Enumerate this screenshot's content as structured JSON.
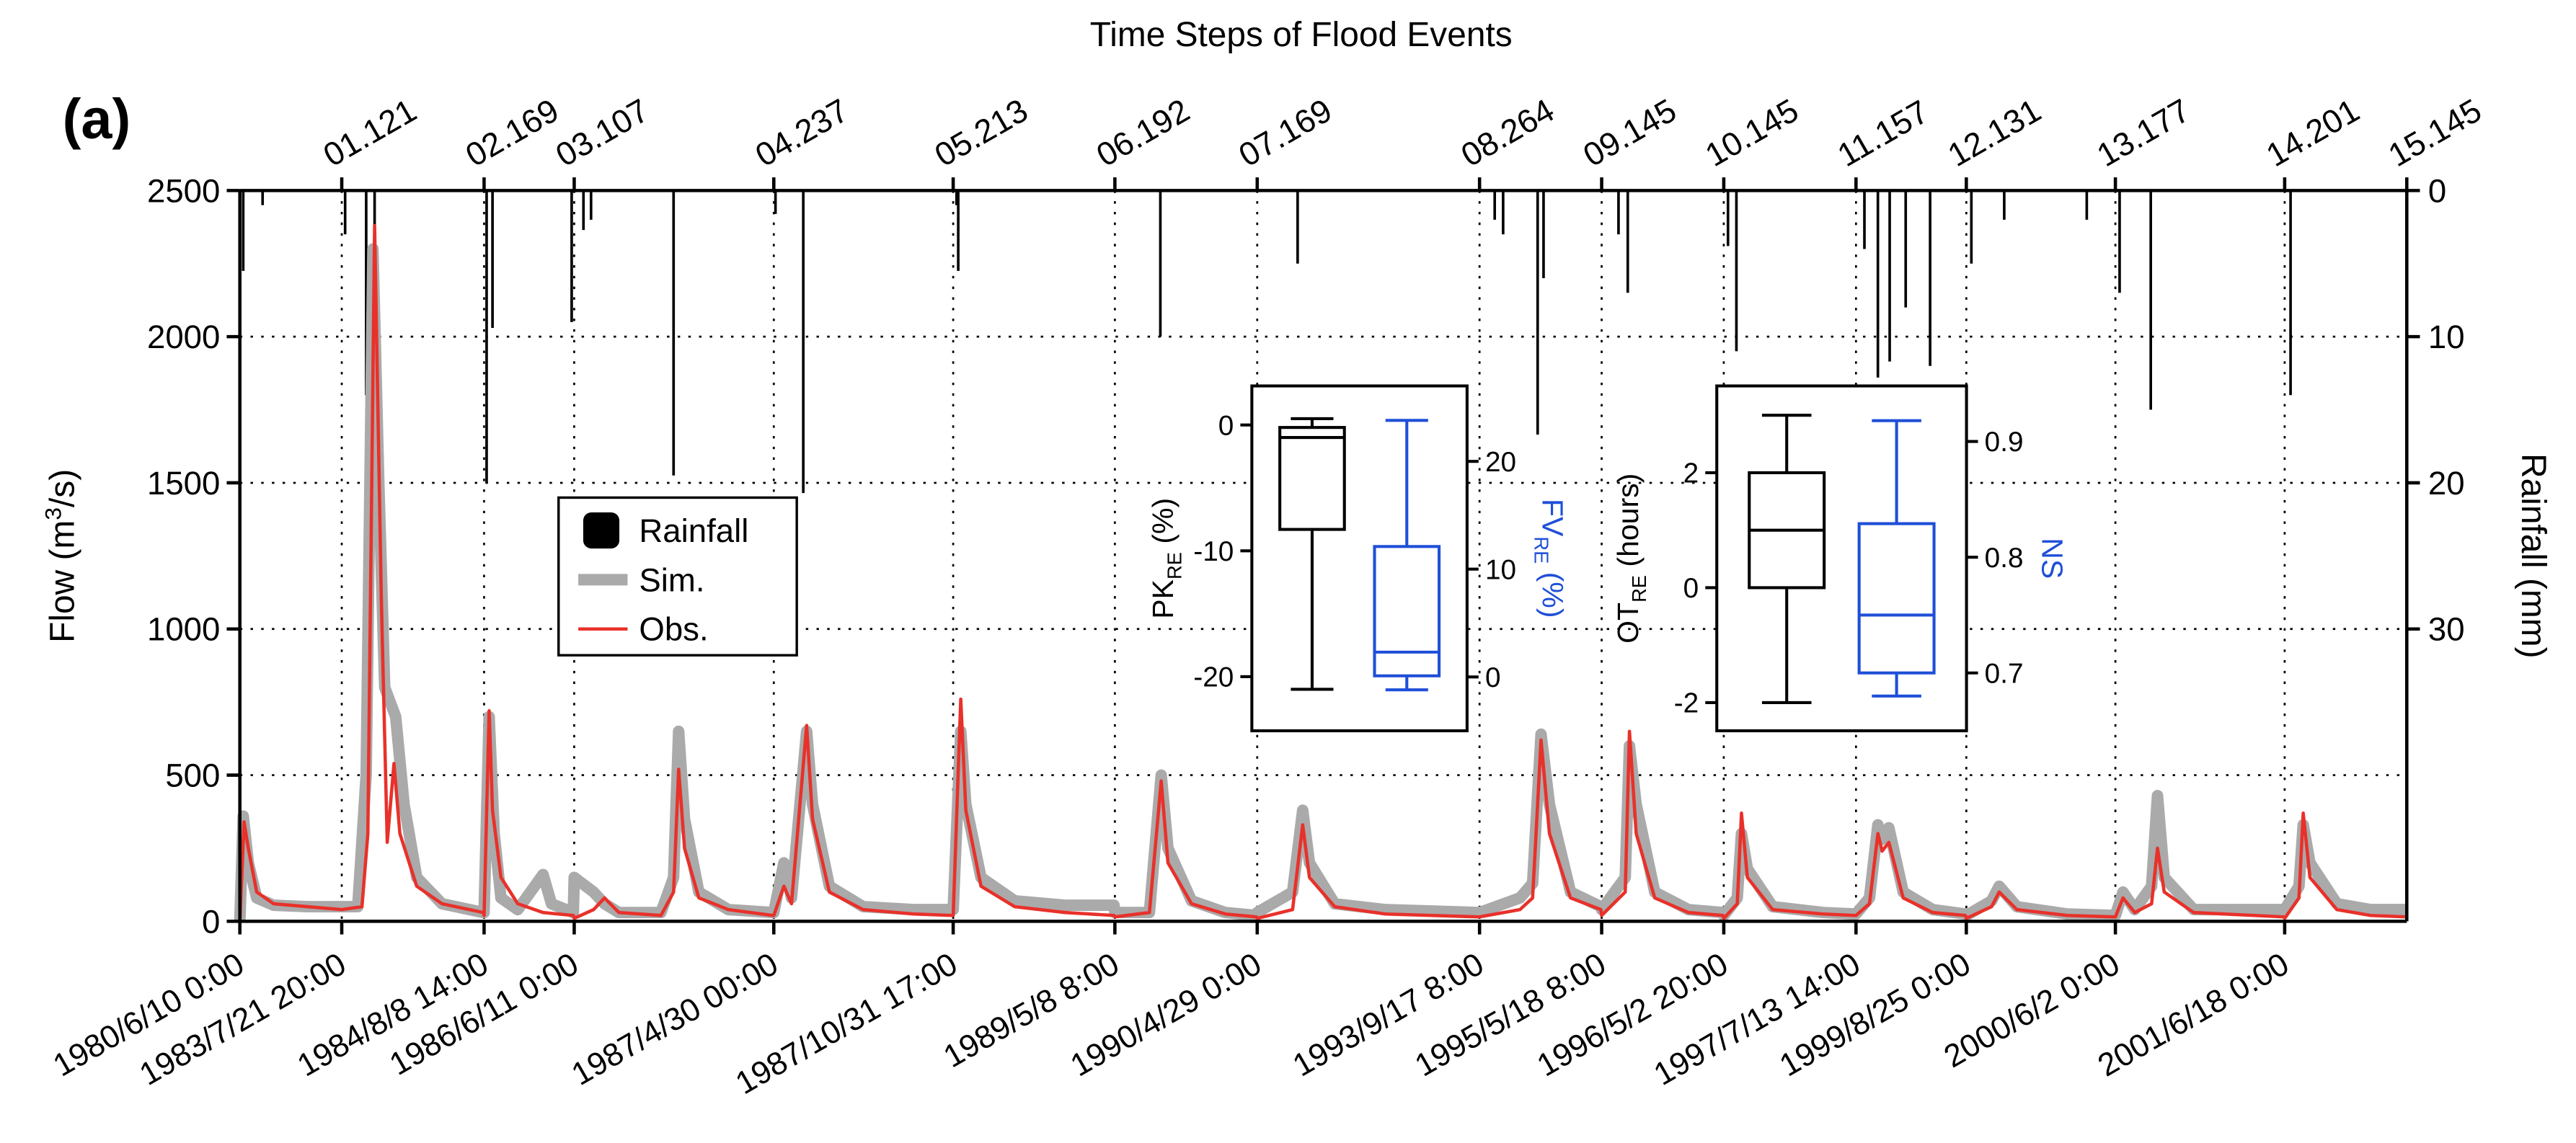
{
  "chart_data": [
    {
      "type": "line",
      "title": "Time Steps of Flood Events",
      "panel_label": "(a)",
      "ylabel": [
        "Flow (m",
        "3",
        "/s)"
      ],
      "y2label": "Rainfall (mm)",
      "xlim": [
        0,
        2573
      ],
      "ylim": [
        0,
        2500
      ],
      "yticks": [
        0,
        500,
        1000,
        1500,
        2000,
        2500
      ],
      "y2lim": [
        0,
        50
      ],
      "y2_inverted": true,
      "y2ticks": [
        0,
        10,
        20,
        30
      ],
      "grid": true,
      "legend": "center left",
      "xticks": [
        {
          "value": 0,
          "label": "1980/6/10 0:00"
        },
        {
          "value": 121,
          "label": "1983/7/21 20:00"
        },
        {
          "value": 290,
          "label": "1984/8/8 14:00"
        },
        {
          "value": 397,
          "label": "1986/6/11 0:00"
        },
        {
          "value": 634,
          "label": "1987/4/30 00:00"
        },
        {
          "value": 847,
          "label": "1987/10/31 17:00"
        },
        {
          "value": 1039,
          "label": "1989/5/8 8:00"
        },
        {
          "value": 1208,
          "label": "1990/4/29 0:00"
        },
        {
          "value": 1472,
          "label": "1993/9/17 8:00"
        },
        {
          "value": 1617,
          "label": "1995/5/18 8:00"
        },
        {
          "value": 1762,
          "label": "1996/5/2 20:00"
        },
        {
          "value": 1919,
          "label": "1997/7/13 14:00"
        },
        {
          "value": 2050,
          "label": "1999/8/25 0:00"
        },
        {
          "value": 2227,
          "label": "2000/6/2 0:00"
        },
        {
          "value": 2428,
          "label": "2001/6/18 0:00"
        }
      ],
      "x2ticks": [
        {
          "value": 121,
          "label": "01.121"
        },
        {
          "value": 290,
          "label": "02.169"
        },
        {
          "value": 397,
          "label": "03.107"
        },
        {
          "value": 634,
          "label": "04.237"
        },
        {
          "value": 847,
          "label": "05.213"
        },
        {
          "value": 1039,
          "label": "06.192"
        },
        {
          "value": 1208,
          "label": "07.169"
        },
        {
          "value": 1472,
          "label": "08.264"
        },
        {
          "value": 1617,
          "label": "09.145"
        },
        {
          "value": 1762,
          "label": "10.145"
        },
        {
          "value": 1919,
          "label": "11.157"
        },
        {
          "value": 2050,
          "label": "12.131"
        },
        {
          "value": 2227,
          "label": "13.177"
        },
        {
          "value": 2428,
          "label": "14.201"
        },
        {
          "value": 2573,
          "label": "15.145"
        }
      ],
      "series": [
        {
          "name": "Rainfall",
          "color": "#000000",
          "axis": "y2",
          "mark": "bar",
          "x": [
            4,
            27,
            125,
            150,
            160,
            293,
            300,
            394,
            408,
            417,
            515,
            636,
            669,
            851,
            853,
            1093,
            1256,
            1490,
            1500,
            1541,
            1548,
            1637,
            1648,
            1767,
            1777,
            1929,
            1945,
            1959,
            1978,
            2007,
            2056,
            2095,
            2193,
            2232,
            2269,
            2435
          ],
          "values": [
            5.5,
            1,
            3,
            14,
            5,
            20,
            9.4,
            9,
            2.7,
            2,
            19.5,
            1.6,
            20.7,
            1,
            5.5,
            10,
            5,
            2,
            3,
            16.7,
            6,
            3,
            7,
            3.8,
            11,
            4,
            12.8,
            11.7,
            8,
            12,
            5,
            2,
            2,
            7,
            15,
            14
          ]
        },
        {
          "name": "Sim.",
          "color": "#aaaaaa",
          "mark": "line",
          "x": [
            0,
            4,
            10,
            20,
            40,
            80,
            121,
            140,
            150,
            158,
            165,
            172,
            185,
            195,
            210,
            240,
            289,
            290,
            296,
            302,
            310,
            330,
            360,
            370,
            396,
            397,
            420,
            433,
            450,
            500,
            515,
            521,
            528,
            545,
            580,
            633,
            634,
            646,
            655,
            673,
            680,
            700,
            740,
            800,
            846,
            847,
            856,
            862,
            880,
            920,
            980,
            1038,
            1039,
            1080,
            1094,
            1102,
            1130,
            1170,
            1207,
            1208,
            1250,
            1262,
            1270,
            1300,
            1360,
            1471,
            1472,
            1520,
            1535,
            1545,
            1555,
            1580,
            1616,
            1617,
            1645,
            1650,
            1658,
            1680,
            1720,
            1761,
            1762,
            1778,
            1783,
            1790,
            1820,
            1880,
            1918,
            1919,
            1935,
            1945,
            1950,
            1958,
            1975,
            2010,
            2049,
            2050,
            2080,
            2089,
            2110,
            2170,
            2226,
            2227,
            2236,
            2250,
            2270,
            2277,
            2285,
            2320,
            2427,
            2428,
            2445,
            2450,
            2458,
            2490,
            2530,
            2573
          ],
          "values": [
            0,
            360,
            200,
            80,
            55,
            50,
            50,
            50,
            500,
            2300,
            1500,
            800,
            700,
            400,
            150,
            60,
            30,
            30,
            700,
            300,
            80,
            40,
            160,
            60,
            30,
            150,
            100,
            60,
            30,
            30,
            150,
            650,
            350,
            100,
            40,
            30,
            30,
            200,
            80,
            650,
            400,
            120,
            50,
            40,
            40,
            40,
            650,
            400,
            150,
            70,
            55,
            55,
            30,
            30,
            500,
            250,
            70,
            30,
            20,
            30,
            100,
            380,
            200,
            60,
            40,
            30,
            30,
            80,
            130,
            640,
            400,
            100,
            50,
            40,
            150,
            600,
            400,
            100,
            40,
            30,
            20,
            80,
            300,
            180,
            50,
            30,
            25,
            25,
            80,
            330,
            280,
            320,
            100,
            40,
            25,
            20,
            70,
            120,
            50,
            25,
            20,
            20,
            100,
            40,
            120,
            430,
            150,
            40,
            40,
            40,
            120,
            330,
            200,
            60,
            40,
            40
          ]
        },
        {
          "name": "Obs.",
          "color": "#e8312a",
          "mark": "line",
          "x": [
            0,
            5,
            10,
            20,
            40,
            80,
            121,
            145,
            152,
            160,
            168,
            175,
            183,
            190,
            210,
            240,
            289,
            290,
            296,
            300,
            310,
            330,
            360,
            396,
            397,
            420,
            433,
            450,
            500,
            515,
            521,
            528,
            545,
            580,
            633,
            634,
            646,
            655,
            673,
            680,
            700,
            740,
            800,
            846,
            847,
            856,
            862,
            880,
            920,
            980,
            1038,
            1039,
            1080,
            1094,
            1102,
            1130,
            1170,
            1207,
            1208,
            1250,
            1262,
            1270,
            1300,
            1360,
            1471,
            1472,
            1520,
            1535,
            1545,
            1555,
            1580,
            1616,
            1617,
            1645,
            1650,
            1658,
            1680,
            1720,
            1761,
            1762,
            1778,
            1783,
            1790,
            1820,
            1880,
            1918,
            1919,
            1935,
            1945,
            1950,
            1958,
            1975,
            2010,
            2049,
            2050,
            2080,
            2089,
            2110,
            2170,
            2226,
            2227,
            2236,
            2250,
            2270,
            2277,
            2285,
            2320,
            2427,
            2428,
            2445,
            2450,
            2458,
            2490,
            2530,
            2573
          ],
          "values": [
            0,
            340,
            250,
            100,
            60,
            50,
            40,
            50,
            300,
            2380,
            1100,
            270,
            540,
            300,
            120,
            60,
            30,
            20,
            720,
            380,
            150,
            60,
            30,
            20,
            10,
            40,
            80,
            30,
            20,
            100,
            520,
            250,
            80,
            40,
            20,
            20,
            120,
            60,
            670,
            350,
            100,
            40,
            25,
            20,
            20,
            760,
            380,
            120,
            50,
            30,
            20,
            15,
            30,
            480,
            200,
            60,
            25,
            15,
            10,
            40,
            330,
            150,
            50,
            25,
            15,
            15,
            40,
            80,
            620,
            300,
            80,
            40,
            20,
            100,
            650,
            300,
            80,
            30,
            20,
            10,
            60,
            370,
            150,
            40,
            25,
            20,
            20,
            60,
            300,
            240,
            270,
            80,
            30,
            20,
            10,
            50,
            100,
            40,
            20,
            15,
            15,
            80,
            30,
            60,
            250,
            100,
            30,
            15,
            10,
            80,
            370,
            150,
            40,
            20,
            15
          ]
        }
      ]
    },
    {
      "type": "box",
      "ylabel": [
        "PK",
        "RE",
        " (%)"
      ],
      "y2label": [
        "FV",
        "RE",
        " (%)"
      ],
      "ylim": [
        -24.3,
        3.1
      ],
      "yticks": [
        -20,
        -10,
        0
      ],
      "y2lim": [
        -5.0,
        27.0
      ],
      "y2ticks": [
        0,
        10,
        20
      ],
      "boxes": [
        {
          "axis": "y",
          "color": "#000000",
          "whisker_low": -21,
          "q1": -8.3,
          "median": -1,
          "q3": -0.2,
          "whisker_high": 0.5
        },
        {
          "axis": "y2",
          "color": "#1f4fd8",
          "whisker_low": -1.2,
          "q1": 0.1,
          "median": 2.3,
          "q3": 12.1,
          "whisker_high": 23.8
        }
      ]
    },
    {
      "type": "box",
      "ylabel": [
        "OT",
        "RE",
        " (hours)"
      ],
      "y2label": [
        "NS"
      ],
      "ylim": [
        -2.49,
        3.51
      ],
      "yticks": [
        -2,
        0,
        2
      ],
      "y2lim": [
        0.65,
        0.948
      ],
      "y2ticks": [
        0.7,
        0.8,
        0.9
      ],
      "boxes": [
        {
          "axis": "y",
          "color": "#000000",
          "whisker_low": -2,
          "q1": 0,
          "median": 1,
          "q3": 2,
          "whisker_high": 3
        },
        {
          "axis": "y2",
          "color": "#1f4fd8",
          "whisker_low": 0.68,
          "q1": 0.7,
          "median": 0.75,
          "q3": 0.829,
          "whisker_high": 0.918
        }
      ]
    }
  ]
}
